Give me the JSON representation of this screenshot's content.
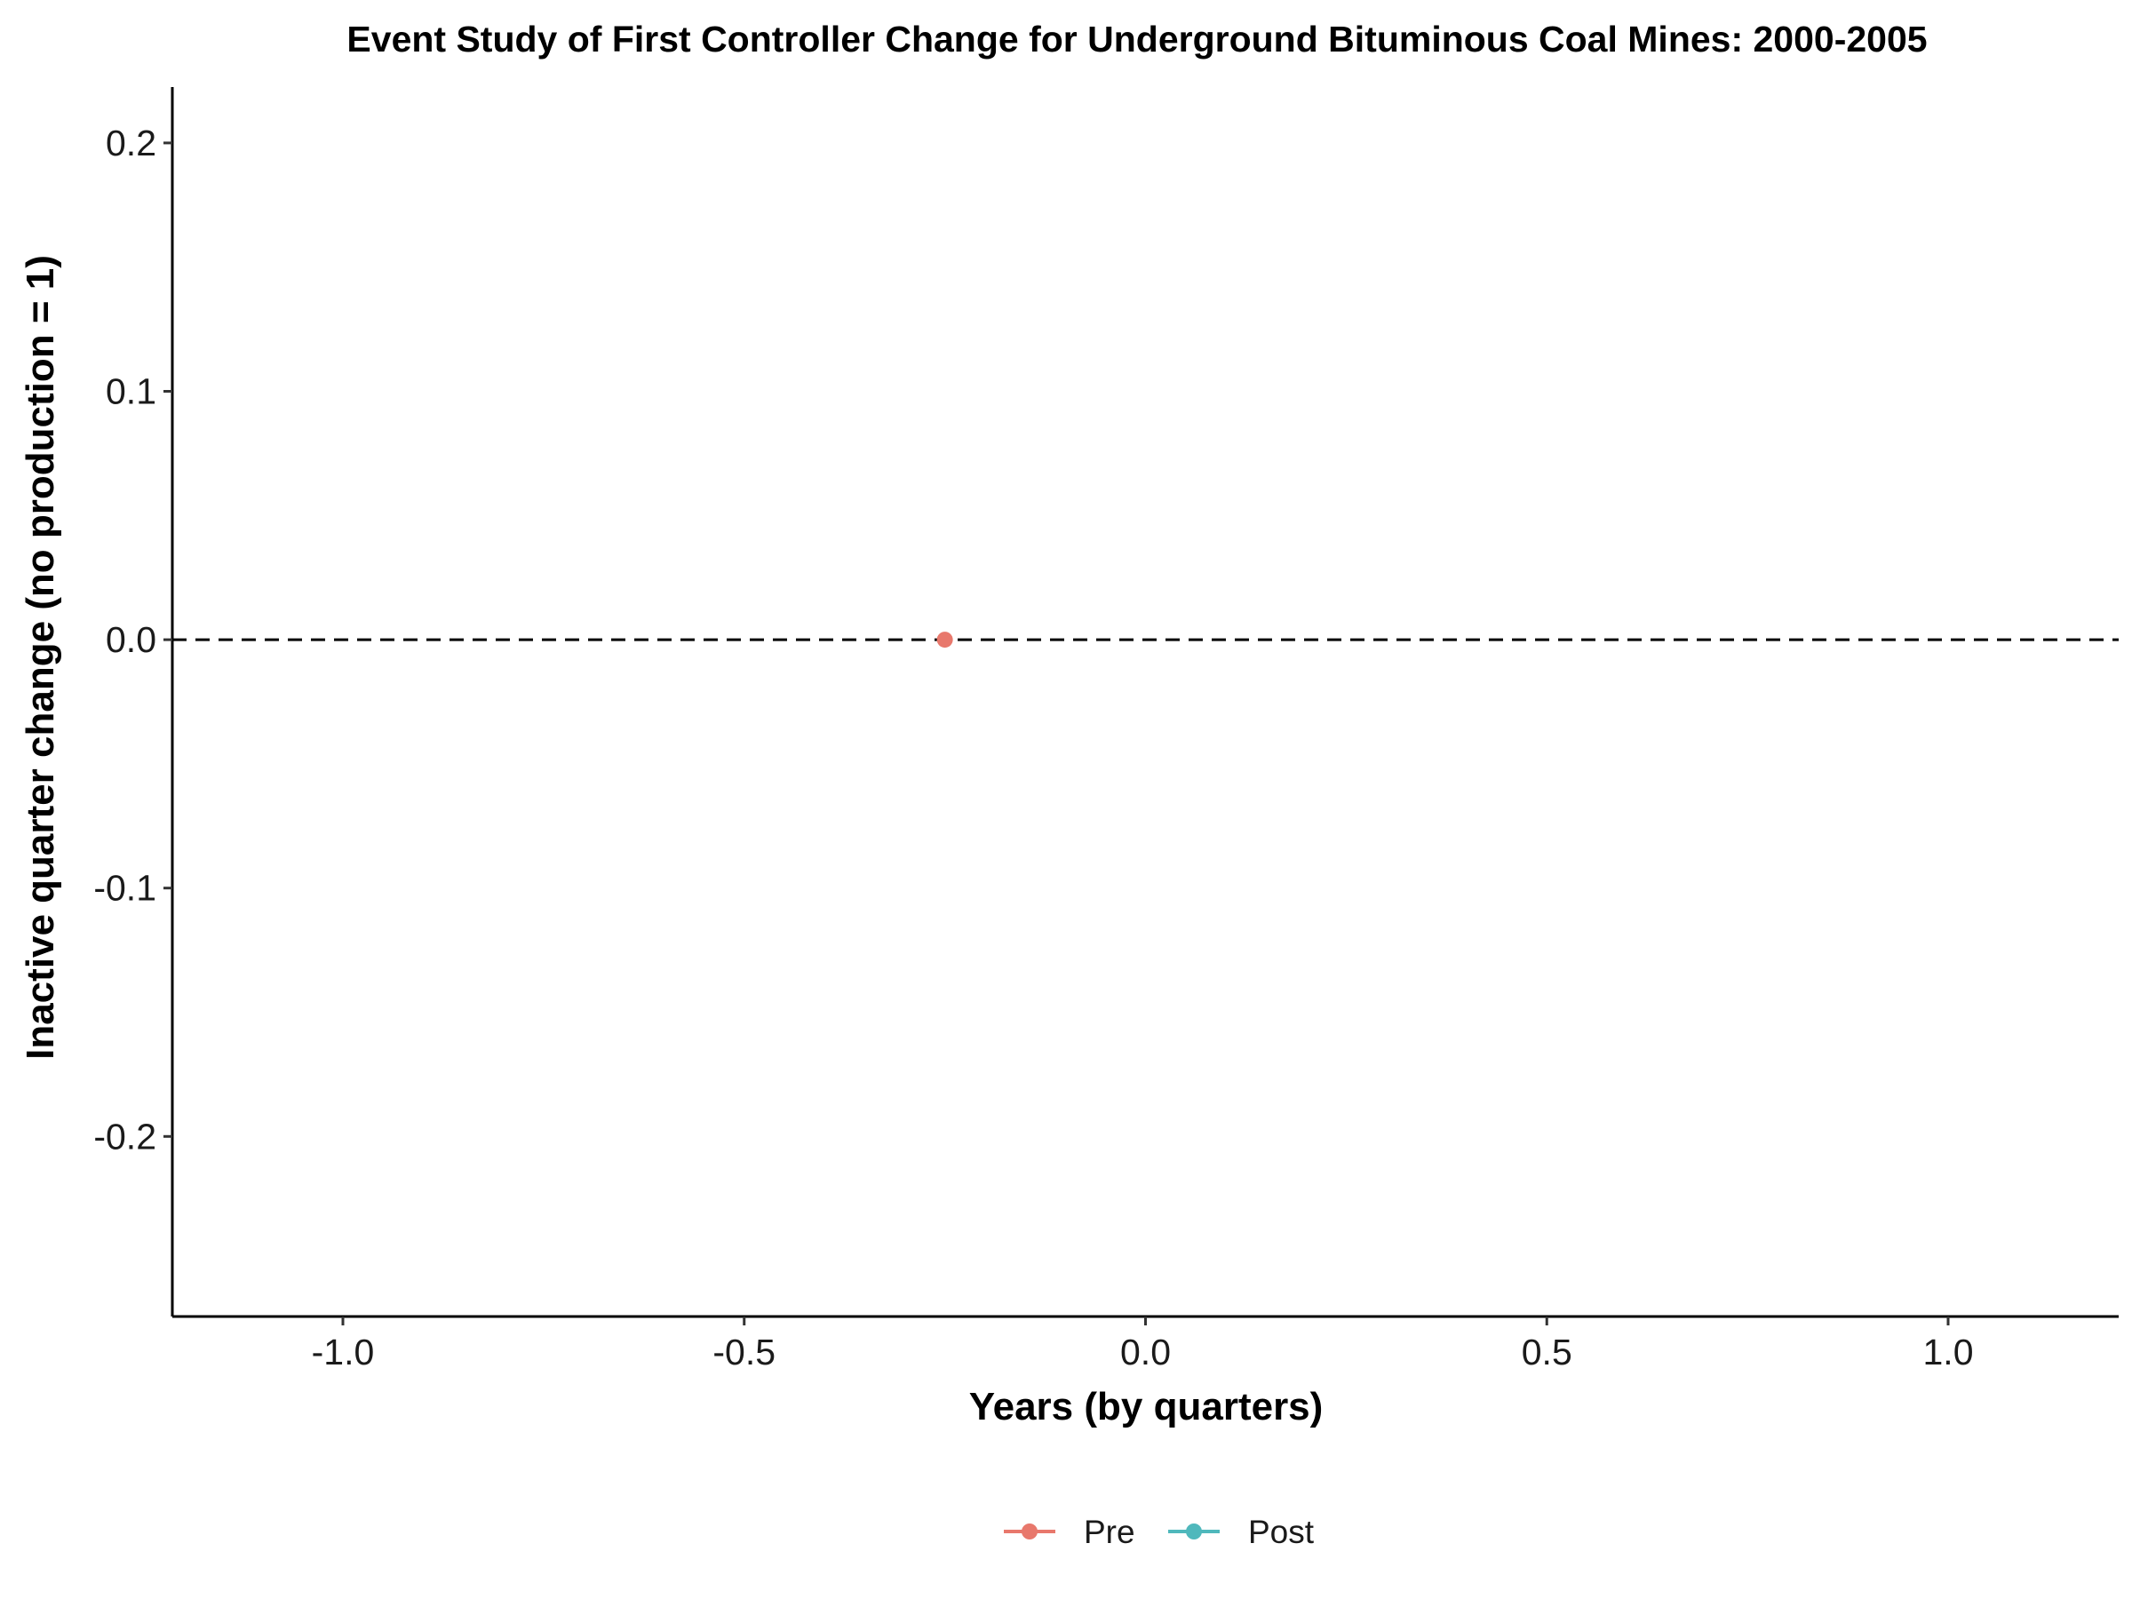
{
  "chart_data": {
    "type": "scatter",
    "title": "Event Study of First Controller Change for Underground Bituminous Coal Mines: 2000-2005",
    "xlabel": "Years (by quarters)",
    "ylabel": "Inactive quarter change (no production = 1)",
    "xlim": [
      -1.2125,
      1.2125
    ],
    "ylim": [
      -0.2725,
      0.2225
    ],
    "x_ticks": [
      -1.0,
      -0.5,
      0.0,
      0.5,
      1.0
    ],
    "x_tick_labels": [
      "-1.0",
      "-0.5",
      "0.0",
      "0.5",
      "1.0"
    ],
    "y_ticks": [
      0.2,
      0.1,
      0.0,
      -0.1,
      -0.2
    ],
    "y_tick_labels": [
      "0.2",
      "0.1",
      "0.0",
      "-0.1",
      "-0.2"
    ],
    "reference_line": {
      "y": 0.0,
      "style": "dashed",
      "color": "#000000"
    },
    "grid": false,
    "legend_position": "bottom",
    "series": [
      {
        "name": "Pre",
        "color": "#E8786C",
        "points": [
          {
            "x": -0.25,
            "y": 0.0
          }
        ]
      },
      {
        "name": "Post",
        "color": "#4FB8BC",
        "points": []
      }
    ]
  }
}
